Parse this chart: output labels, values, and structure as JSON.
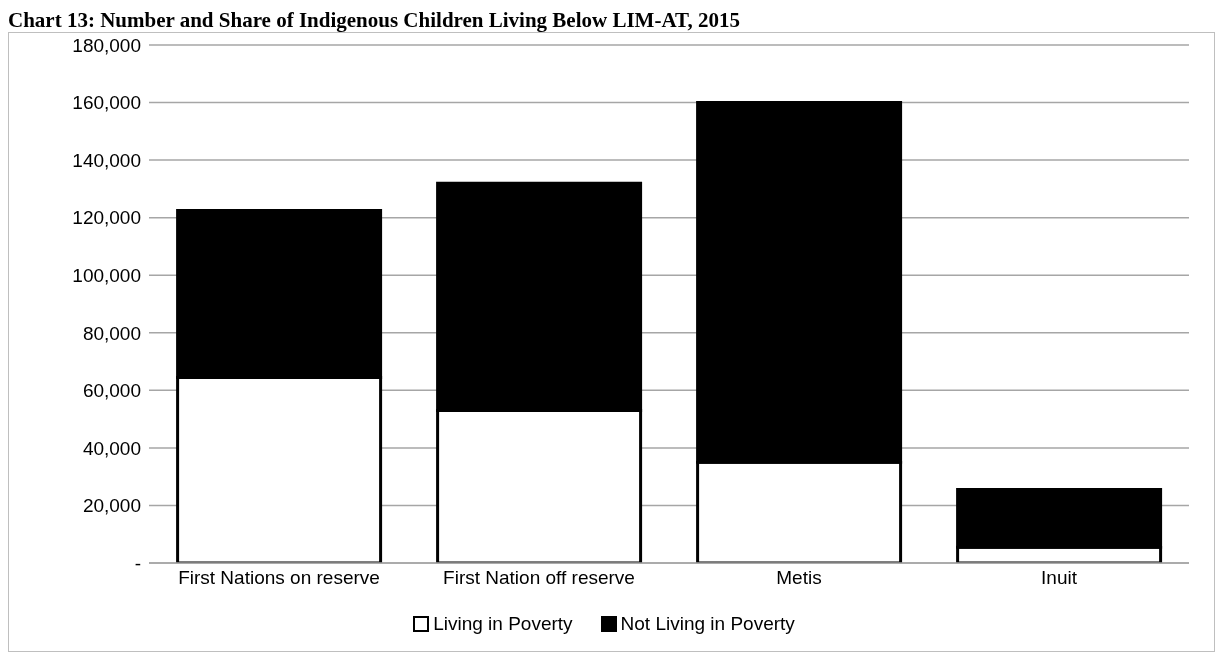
{
  "chart_data": {
    "type": "bar",
    "title": "Chart 13: Number and Share of Indigenous Children Living Below LIM-AT, 2015",
    "categories": [
      "First Nations on reserve",
      "First Nation off reserve",
      "Metis",
      "Inuit"
    ],
    "series": [
      {
        "name": "Living in Poverty",
        "color": "#ffffff",
        "values": [
          64500,
          53000,
          35000,
          5500
        ]
      },
      {
        "name": "Not Living in Poverty",
        "color": "#000000",
        "values": [
          58000,
          79000,
          125000,
          20000
        ]
      }
    ],
    "stacked": true,
    "ylim": [
      0,
      180000
    ],
    "yticks": [
      {
        "value": 0,
        "label": "-"
      },
      {
        "value": 20000,
        "label": "20,000"
      },
      {
        "value": 40000,
        "label": "40,000"
      },
      {
        "value": 60000,
        "label": "60,000"
      },
      {
        "value": 80000,
        "label": "80,000"
      },
      {
        "value": 100000,
        "label": "100,000"
      },
      {
        "value": 120000,
        "label": "120,000"
      },
      {
        "value": 140000,
        "label": "140,000"
      },
      {
        "value": 160000,
        "label": "160,000"
      },
      {
        "value": 180000,
        "label": "180,000"
      }
    ],
    "grid": "y",
    "legend": "bottom"
  }
}
